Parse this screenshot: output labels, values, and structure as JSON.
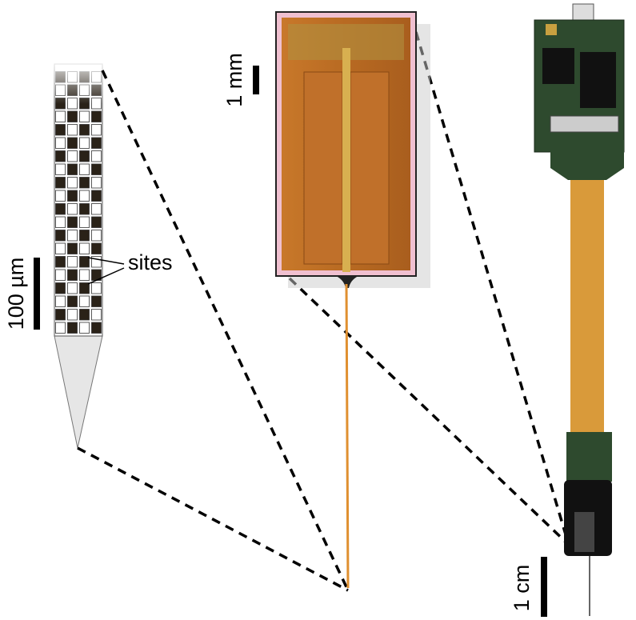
{
  "labels": {
    "sites": "sites",
    "scale_shank": "100 µm",
    "scale_chip": "1 mm",
    "scale_device": "1 cm"
  }
}
